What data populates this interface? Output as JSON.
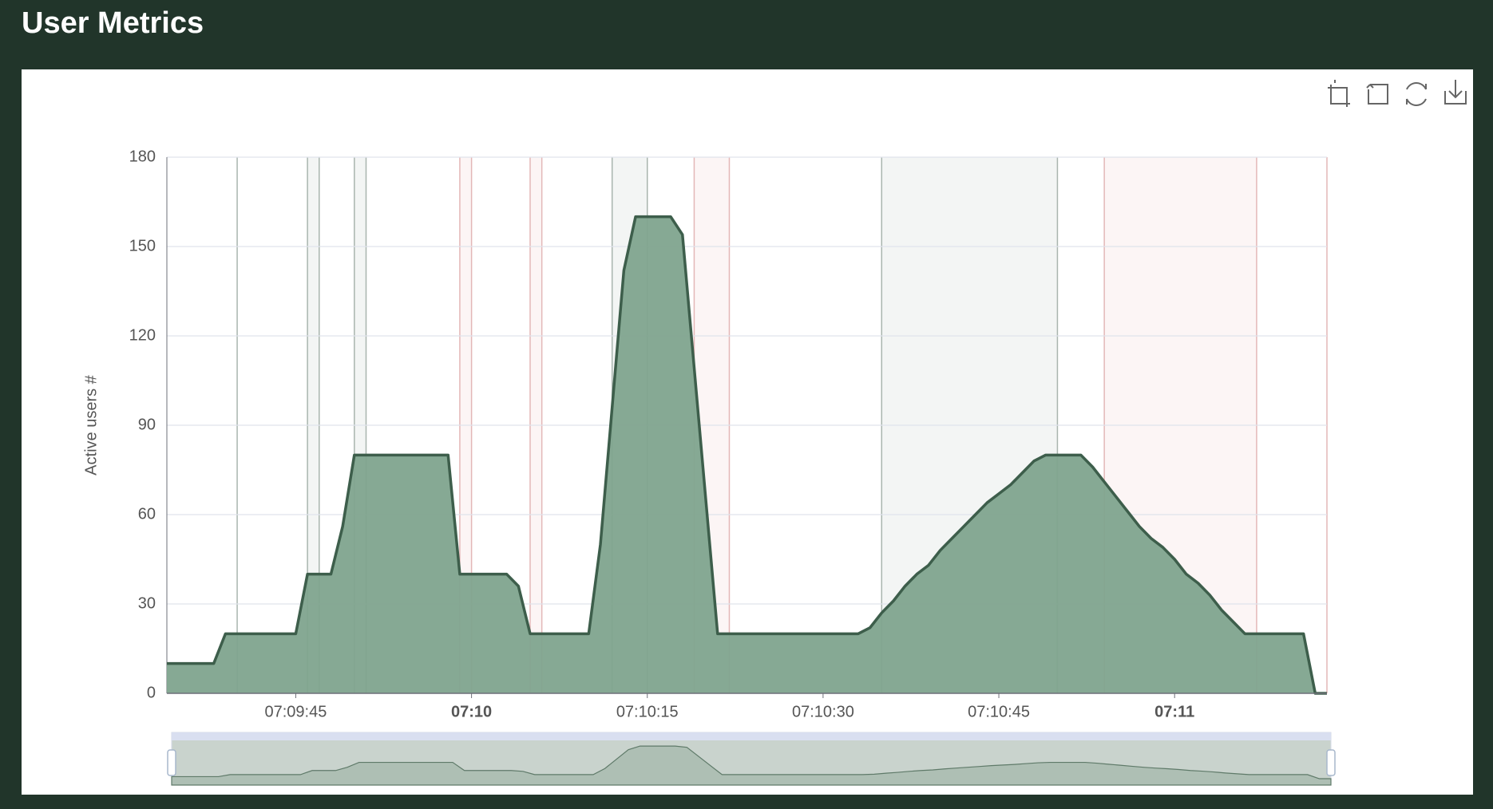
{
  "header": {
    "title": "User Metrics"
  },
  "chart_data": {
    "type": "area",
    "y_label": "Active users #",
    "x": [
      "07:09:34",
      "07:09:38",
      "07:09:39",
      "07:09:45",
      "07:09:46",
      "07:09:48",
      "07:09:49",
      "07:09:50",
      "07:09:58",
      "07:09:59",
      "07:10:03",
      "07:10:04",
      "07:10:05",
      "07:10:10",
      "07:10:11",
      "07:10:13",
      "07:10:14",
      "07:10:17",
      "07:10:18",
      "07:10:21",
      "07:10:33",
      "07:10:34",
      "07:10:35",
      "07:10:36",
      "07:10:37",
      "07:10:38",
      "07:10:39",
      "07:10:40",
      "07:10:41",
      "07:10:42",
      "07:10:43",
      "07:10:44",
      "07:10:45",
      "07:10:46",
      "07:10:47",
      "07:10:48",
      "07:10:49",
      "07:10:52",
      "07:10:53",
      "07:10:54",
      "07:10:55",
      "07:10:56",
      "07:10:57",
      "07:10:58",
      "07:10:59",
      "07:11:00",
      "07:11:01",
      "07:11:02",
      "07:11:03",
      "07:11:04",
      "07:11:05",
      "07:11:06",
      "07:11:11",
      "07:11:12",
      "07:11:13"
    ],
    "values": [
      10,
      10,
      20,
      20,
      40,
      40,
      56,
      80,
      80,
      40,
      40,
      36,
      20,
      20,
      50,
      142,
      160,
      160,
      154,
      20,
      20,
      22,
      27,
      31,
      36,
      40,
      43,
      48,
      52,
      56,
      60,
      64,
      67,
      70,
      74,
      78,
      80,
      80,
      76,
      71,
      66,
      61,
      56,
      52,
      49,
      45,
      40,
      37,
      33,
      28,
      24,
      20,
      20,
      0,
      0
    ],
    "color": "#7fa48e",
    "line_color": "#3d5e4b",
    "xlim": [
      "07:09:34",
      "07:11:13"
    ],
    "xticks": [
      "07:09:45",
      {
        "value": "07:10:00",
        "label": "07:10"
      },
      "07:10:15",
      "07:10:30",
      "07:10:45",
      {
        "value": "07:11:00",
        "label": "07:11"
      }
    ],
    "ylim": [
      0,
      180
    ],
    "yticks": [
      0,
      30,
      60,
      90,
      120,
      150,
      180
    ],
    "grid": true,
    "regions": [
      {
        "start": "07:09:40",
        "end": "07:09:40",
        "color": "gray"
      },
      {
        "start": "07:09:46",
        "end": "07:09:47",
        "color": "gray"
      },
      {
        "start": "07:09:50",
        "end": "07:09:51",
        "color": "gray"
      },
      {
        "start": "07:09:59",
        "end": "07:10:00",
        "color": "red"
      },
      {
        "start": "07:10:05",
        "end": "07:10:06",
        "color": "red"
      },
      {
        "start": "07:10:12",
        "end": "07:10:15",
        "color": "gray"
      },
      {
        "start": "07:10:19",
        "end": "07:10:22",
        "color": "red"
      },
      {
        "start": "07:10:35",
        "end": "07:10:50",
        "color": "gray"
      },
      {
        "start": "07:10:54",
        "end": "07:11:07",
        "color": "red"
      },
      {
        "start": "07:11:13",
        "end": "07:11:13",
        "color": "red"
      }
    ]
  }
}
